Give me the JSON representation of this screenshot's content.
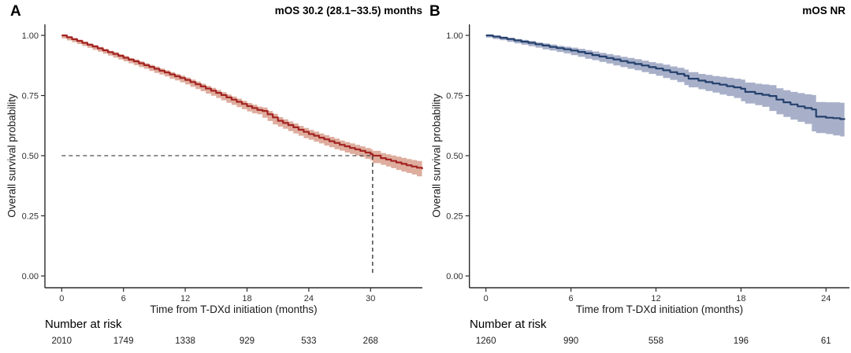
{
  "figure": {
    "background": "#ffffff"
  },
  "chart_data": [
    {
      "type": "line",
      "subtype": "kaplan-meier-step",
      "panel_label": "A",
      "title": "mOS 30.2 (28.1−33.5) months",
      "xlabel": "Time from T-DXd initiation (months)",
      "ylabel": "Overall survival probability",
      "x_ticks": [
        0,
        6,
        12,
        18,
        24,
        30
      ],
      "y_ticks": [
        0,
        0.25,
        0.5,
        0.75,
        1
      ],
      "y_tick_labels": [
        "0.00",
        "0.25",
        "0.50",
        "0.75",
        "1.00"
      ],
      "xlim": [
        0,
        35
      ],
      "ylim": [
        0,
        1
      ],
      "grid": false,
      "legend": "none",
      "line_color": "#a32422",
      "band_color": "#dead9e",
      "median_line": {
        "time": 30.2,
        "prob": 0.5
      },
      "risk_table": {
        "label": "Number at risk",
        "times": [
          0,
          6,
          12,
          18,
          24,
          30
        ],
        "values": [
          "2010",
          "1749",
          "1338",
          "929",
          "533",
          "268"
        ]
      },
      "series": [
        {
          "name": "T-DXd overall survival",
          "points": [
            [
              0,
              1.0,
              0.004
            ],
            [
              0.5,
              0.992,
              0.004
            ],
            [
              1,
              0.984,
              0.005
            ],
            [
              1.5,
              0.977,
              0.005
            ],
            [
              2,
              0.969,
              0.005
            ],
            [
              2.5,
              0.961,
              0.005
            ],
            [
              3,
              0.954,
              0.006
            ],
            [
              3.5,
              0.946,
              0.006
            ],
            [
              4,
              0.938,
              0.006
            ],
            [
              4.5,
              0.93,
              0.006
            ],
            [
              5,
              0.923,
              0.007
            ],
            [
              5.5,
              0.915,
              0.007
            ],
            [
              6,
              0.907,
              0.007
            ],
            [
              6.5,
              0.899,
              0.007
            ],
            [
              7,
              0.892,
              0.008
            ],
            [
              7.5,
              0.884,
              0.008
            ],
            [
              8,
              0.876,
              0.008
            ],
            [
              8.5,
              0.869,
              0.008
            ],
            [
              9,
              0.861,
              0.009
            ],
            [
              9.5,
              0.853,
              0.009
            ],
            [
              10,
              0.846,
              0.009
            ],
            [
              10.5,
              0.838,
              0.009
            ],
            [
              11,
              0.83,
              0.01
            ],
            [
              11.5,
              0.823,
              0.01
            ],
            [
              12,
              0.815,
              0.01
            ],
            [
              12.5,
              0.806,
              0.01
            ],
            [
              13,
              0.797,
              0.011
            ],
            [
              13.5,
              0.788,
              0.011
            ],
            [
              14,
              0.779,
              0.011
            ],
            [
              14.5,
              0.77,
              0.012
            ],
            [
              15,
              0.761,
              0.012
            ],
            [
              15.5,
              0.752,
              0.012
            ],
            [
              16,
              0.742,
              0.012
            ],
            [
              16.5,
              0.733,
              0.013
            ],
            [
              17,
              0.724,
              0.013
            ],
            [
              17.5,
              0.715,
              0.013
            ],
            [
              18,
              0.706,
              0.013
            ],
            [
              18.5,
              0.698,
              0.014
            ],
            [
              19,
              0.69,
              0.014
            ],
            [
              19.5,
              0.686,
              0.014
            ],
            [
              20,
              0.672,
              0.014
            ],
            [
              20.5,
              0.659,
              0.015
            ],
            [
              21,
              0.645,
              0.015
            ],
            [
              21.5,
              0.636,
              0.015
            ],
            [
              22,
              0.627,
              0.015
            ],
            [
              22.5,
              0.618,
              0.016
            ],
            [
              23,
              0.608,
              0.016
            ],
            [
              23.5,
              0.599,
              0.016
            ],
            [
              24,
              0.59,
              0.017
            ],
            [
              24.5,
              0.583,
              0.017
            ],
            [
              25,
              0.575,
              0.017
            ],
            [
              25.5,
              0.568,
              0.017
            ],
            [
              26,
              0.56,
              0.018
            ],
            [
              26.5,
              0.553,
              0.018
            ],
            [
              27,
              0.545,
              0.018
            ],
            [
              27.5,
              0.539,
              0.018
            ],
            [
              28,
              0.532,
              0.019
            ],
            [
              28.5,
              0.526,
              0.019
            ],
            [
              29,
              0.52,
              0.019
            ],
            [
              29.5,
              0.513,
              0.019
            ],
            [
              30,
              0.507,
              0.02
            ],
            [
              30.2,
              0.5,
              0.02
            ],
            [
              31,
              0.49,
              0.021
            ],
            [
              31.5,
              0.484,
              0.022
            ],
            [
              32,
              0.478,
              0.023
            ],
            [
              32.5,
              0.472,
              0.024
            ],
            [
              33,
              0.466,
              0.025
            ],
            [
              33.5,
              0.46,
              0.026
            ],
            [
              34,
              0.455,
              0.027
            ],
            [
              34.5,
              0.45,
              0.028
            ],
            [
              35,
              0.444,
              0.03
            ]
          ]
        }
      ]
    },
    {
      "type": "line",
      "subtype": "kaplan-meier-step",
      "panel_label": "B",
      "title": "mOS NR",
      "xlabel": "Time from T-DXd initiation (months)",
      "ylabel": "Overall survival probability",
      "x_ticks": [
        0,
        6,
        12,
        18,
        24
      ],
      "y_ticks": [
        0,
        0.25,
        0.5,
        0.75,
        1
      ],
      "y_tick_labels": [
        "0.00",
        "0.25",
        "0.50",
        "0.75",
        "1.00"
      ],
      "xlim": [
        0,
        25.5
      ],
      "ylim": [
        0,
        1
      ],
      "grid": false,
      "legend": "none",
      "line_color": "#24406c",
      "band_color": "#a8b0c9",
      "median_line": null,
      "risk_table": {
        "label": "Number at risk",
        "times": [
          0,
          6,
          12,
          18,
          24
        ],
        "values": [
          "1260",
          "990",
          "558",
          "196",
          "61"
        ]
      },
      "series": [
        {
          "name": "T-DXd overall survival",
          "points": [
            [
              0,
              1.0,
              0.003
            ],
            [
              0.5,
              0.995,
              0.004
            ],
            [
              1,
              0.99,
              0.005
            ],
            [
              1.5,
              0.985,
              0.005
            ],
            [
              2,
              0.979,
              0.006
            ],
            [
              2.5,
              0.974,
              0.007
            ],
            [
              3,
              0.969,
              0.008
            ],
            [
              3.5,
              0.963,
              0.008
            ],
            [
              4,
              0.958,
              0.009
            ],
            [
              4.5,
              0.952,
              0.01
            ],
            [
              5,
              0.947,
              0.01
            ],
            [
              5.5,
              0.942,
              0.011
            ],
            [
              6,
              0.937,
              0.012
            ],
            [
              6.5,
              0.931,
              0.013
            ],
            [
              7,
              0.925,
              0.014
            ],
            [
              7.5,
              0.918,
              0.015
            ],
            [
              8,
              0.912,
              0.015
            ],
            [
              8.5,
              0.906,
              0.016
            ],
            [
              9,
              0.9,
              0.017
            ],
            [
              9.5,
              0.893,
              0.018
            ],
            [
              10,
              0.887,
              0.019
            ],
            [
              10.5,
              0.881,
              0.02
            ],
            [
              11,
              0.875,
              0.02
            ],
            [
              11.5,
              0.868,
              0.021
            ],
            [
              12,
              0.862,
              0.022
            ],
            [
              12.5,
              0.855,
              0.023
            ],
            [
              13,
              0.847,
              0.024
            ],
            [
              13.5,
              0.84,
              0.025
            ],
            [
              14,
              0.832,
              0.026
            ],
            [
              14.3,
              0.82,
              0.027
            ],
            [
              15,
              0.812,
              0.028
            ],
            [
              15.5,
              0.806,
              0.03
            ],
            [
              16,
              0.8,
              0.031
            ],
            [
              16.5,
              0.795,
              0.033
            ],
            [
              17,
              0.789,
              0.035
            ],
            [
              17.5,
              0.784,
              0.036
            ],
            [
              18,
              0.778,
              0.038
            ],
            [
              18.3,
              0.765,
              0.039
            ],
            [
              19,
              0.758,
              0.041
            ],
            [
              19.5,
              0.753,
              0.043
            ],
            [
              20,
              0.748,
              0.045
            ],
            [
              20.5,
              0.733,
              0.047
            ],
            [
              21,
              0.722,
              0.05
            ],
            [
              21.5,
              0.713,
              0.052
            ],
            [
              22,
              0.705,
              0.055
            ],
            [
              22.5,
              0.698,
              0.057
            ],
            [
              23,
              0.692,
              0.06
            ],
            [
              23.3,
              0.662,
              0.061
            ],
            [
              24,
              0.658,
              0.064
            ],
            [
              24.5,
              0.656,
              0.066
            ],
            [
              25,
              0.652,
              0.068
            ],
            [
              25.3,
              0.65,
              0.07
            ]
          ]
        }
      ]
    }
  ],
  "style": {
    "axis_color": "#2b2b2b",
    "tick_label_color": "#303030",
    "risk_value_color": "#222222",
    "median_dash_color": "#4d4d4d"
  }
}
